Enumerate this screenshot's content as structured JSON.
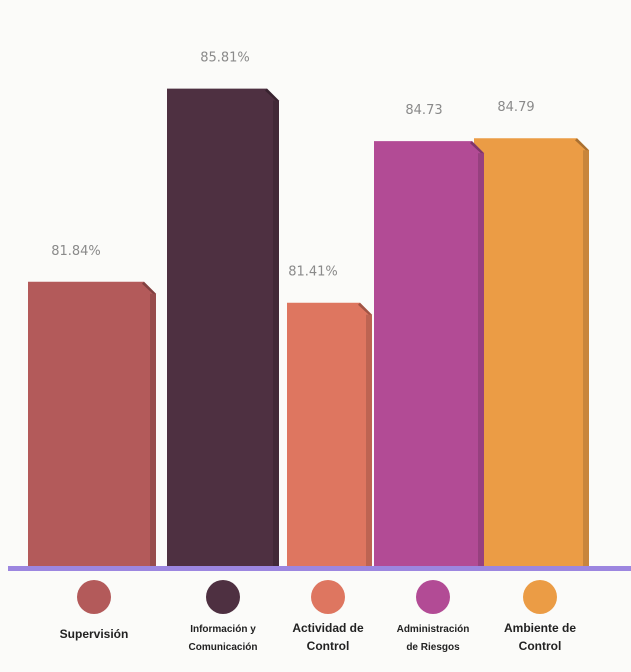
{
  "chart_data": {
    "type": "bar",
    "title": "",
    "xlabel": "",
    "ylabel": "",
    "ylim": [
      76,
      86.5
    ],
    "grid": false,
    "legend": "bottom",
    "categories": [
      "Supervisión",
      "Información y Comunicación",
      "Actividad de Control",
      "Administración de Riesgos",
      "Ambiente de Control"
    ],
    "values": [
      81.84,
      85.81,
      81.41,
      84.73,
      84.79
    ],
    "value_labels": [
      "81.84%",
      "85.81%",
      "81.41%",
      "84.73",
      "84.79"
    ],
    "legend_labels": [
      [
        "Supervisión"
      ],
      [
        "Información y",
        "Comunicación"
      ],
      [
        "Actividad de",
        "Control"
      ],
      [
        "Administración",
        "de Riesgos"
      ],
      [
        "Ambiente de",
        "Control"
      ]
    ],
    "colors": [
      "#b35a5a",
      "#4e3041",
      "#de7660",
      "#b24b95",
      "#eb9c45"
    ],
    "baseline_color": "#9c86e0"
  }
}
